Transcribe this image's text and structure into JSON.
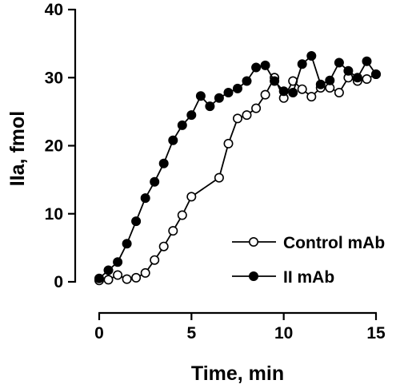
{
  "chart_data": {
    "type": "line",
    "xlabel": "Time, min",
    "ylabel": "IIa, fmol",
    "xlim": [
      0,
      15
    ],
    "ylim": [
      0,
      40
    ],
    "xticks": [
      0,
      5,
      10,
      15
    ],
    "yticks": [
      0,
      10,
      20,
      30,
      40
    ],
    "grid": false,
    "legend_position": "lower-right",
    "series": [
      {
        "name": "Control mAb",
        "marker": "open-circle",
        "color": "#000000",
        "x": [
          0,
          0.5,
          1,
          1.5,
          2,
          2.5,
          3,
          3.5,
          4,
          4.5,
          5,
          6.5,
          7,
          7.5,
          8,
          8.5,
          9,
          9.5,
          10,
          10.5,
          11,
          11.5,
          12,
          12.5,
          13,
          13.5,
          14,
          14.5,
          15
        ],
        "y": [
          0.2,
          0.3,
          1.0,
          0.4,
          0.6,
          1.3,
          3.2,
          5.2,
          7.5,
          9.8,
          12.5,
          15.3,
          20.3,
          24.0,
          24.5,
          25.5,
          27.5,
          30.0,
          27.0,
          29.5,
          28.3,
          27.2,
          28.5,
          28.5,
          27.8,
          30.0,
          29.5,
          29.8,
          30.5
        ]
      },
      {
        "name": "II mAb",
        "marker": "filled-circle",
        "color": "#000000",
        "x": [
          0,
          0.5,
          1,
          1.5,
          2,
          2.5,
          3,
          3.5,
          4,
          4.5,
          5,
          5.5,
          6,
          6.5,
          7,
          7.5,
          8,
          8.5,
          9,
          9.5,
          10,
          10.5,
          11,
          11.5,
          12,
          12.5,
          13,
          13.5,
          14,
          14.5,
          15
        ],
        "y": [
          0.5,
          1.7,
          2.9,
          5.6,
          8.9,
          12.3,
          14.7,
          17.4,
          20.8,
          23.0,
          24.5,
          27.3,
          25.8,
          27.0,
          27.8,
          28.4,
          29.5,
          31.5,
          31.8,
          29.5,
          28.0,
          27.8,
          32.0,
          33.2,
          29.0,
          29.6,
          32.2,
          31.0,
          30.0,
          32.4,
          30.5
        ]
      }
    ]
  }
}
